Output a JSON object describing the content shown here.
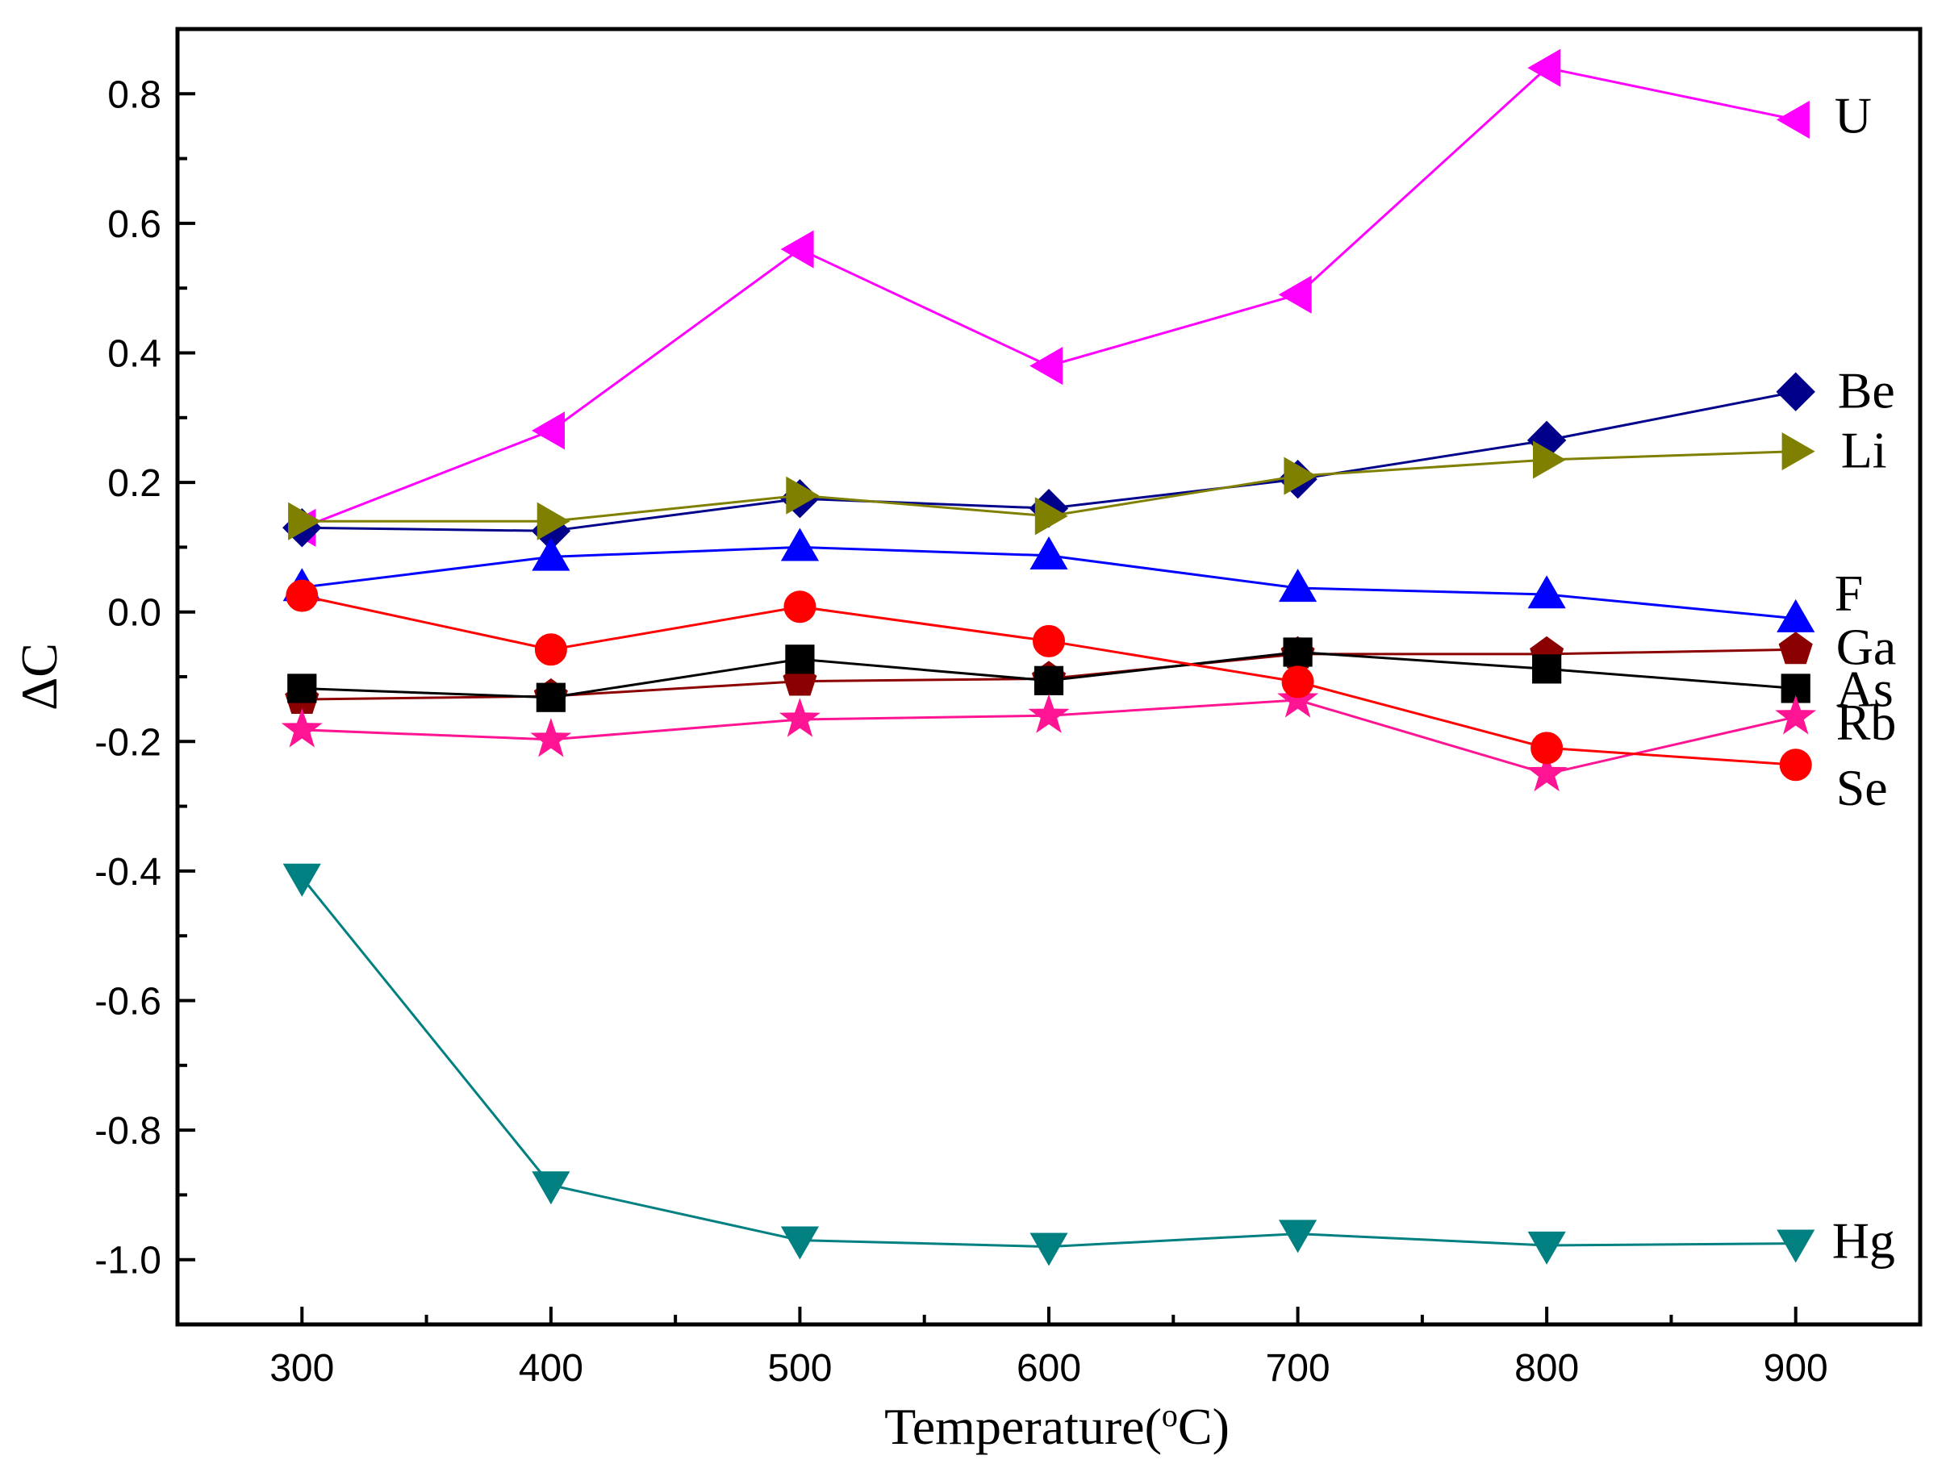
{
  "chart_data": {
    "type": "line",
    "title": "",
    "xlabel": "Temperature(",
    "xlabel_sup": "o",
    "xlabel_unit": "C)",
    "ylabel": "ΔC",
    "xlim": [
      250,
      950
    ],
    "ylim": [
      -1.1,
      0.9
    ],
    "x": [
      300,
      400,
      500,
      600,
      700,
      800,
      900
    ],
    "xticks": [
      300,
      400,
      500,
      600,
      700,
      800,
      900
    ],
    "xtick_labels": [
      "300",
      "400",
      "500",
      "600",
      "700",
      "800",
      "900"
    ],
    "yticks": [
      -1.0,
      -0.8,
      -0.6,
      -0.4,
      -0.2,
      0.0,
      0.2,
      0.4,
      0.6,
      0.8
    ],
    "ytick_labels": [
      "-1.0",
      "-0.8",
      "-0.6",
      "-0.4",
      "-0.2",
      "0.0",
      "0.2",
      "0.4",
      "0.6",
      "0.8"
    ],
    "series": [
      {
        "name": "U",
        "label": "U",
        "color": "#ff00ff",
        "marker": "triangle-left",
        "values": [
          0.13,
          0.28,
          0.56,
          0.38,
          0.49,
          0.84,
          0.76
        ]
      },
      {
        "name": "Be",
        "label": "Be",
        "color": "#00008b",
        "marker": "diamond",
        "values": [
          0.13,
          0.125,
          0.175,
          0.16,
          0.205,
          0.265,
          0.34
        ]
      },
      {
        "name": "Li",
        "label": "Li",
        "color": "#808000",
        "marker": "triangle-right",
        "values": [
          0.14,
          0.14,
          0.18,
          0.148,
          0.21,
          0.235,
          0.248
        ]
      },
      {
        "name": "F",
        "label": "F",
        "color": "#0000ff",
        "marker": "triangle-up",
        "values": [
          0.038,
          0.085,
          0.1,
          0.087,
          0.037,
          0.027,
          -0.01
        ]
      },
      {
        "name": "Ga",
        "label": "Ga",
        "color": "#8b0000",
        "marker": "pentagon",
        "values": [
          -0.135,
          -0.13,
          -0.107,
          -0.103,
          -0.065,
          -0.065,
          -0.058
        ]
      },
      {
        "name": "As",
        "label": "As",
        "color": "#000000",
        "marker": "square",
        "values": [
          -0.118,
          -0.132,
          -0.073,
          -0.106,
          -0.062,
          -0.088,
          -0.118
        ]
      },
      {
        "name": "Rb",
        "label": "Rb",
        "color": "#ff1493",
        "marker": "star",
        "values": [
          -0.182,
          -0.197,
          -0.166,
          -0.16,
          -0.136,
          -0.25,
          -0.162
        ]
      },
      {
        "name": "Se",
        "label": "Se",
        "color": "#ff0000",
        "marker": "circle",
        "values": [
          0.025,
          -0.058,
          0.008,
          -0.045,
          -0.108,
          -0.21,
          -0.236
        ]
      },
      {
        "name": "Hg",
        "label": "Hg",
        "color": "#008080",
        "marker": "triangle-down",
        "values": [
          -0.41,
          -0.885,
          -0.97,
          -0.98,
          -0.96,
          -0.978,
          -0.975
        ]
      }
    ]
  }
}
